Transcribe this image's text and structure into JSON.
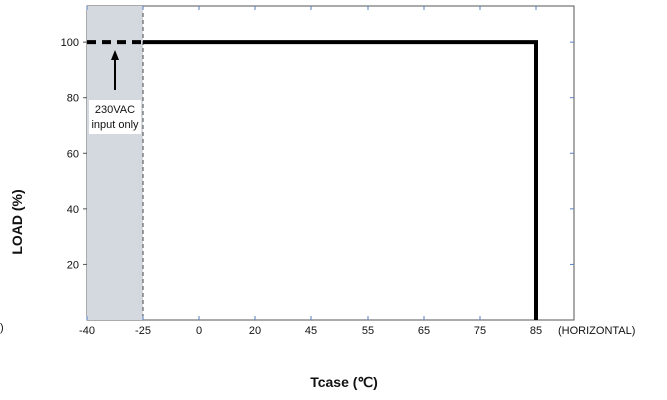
{
  "chart_data": {
    "type": "line",
    "xlabel": "Tcase (℃)",
    "ylabel": "LOAD (%)",
    "x_axis_suffix": "(HORIZONTAL)",
    "x_ticks": [
      "-40",
      "-25",
      "0",
      "20",
      "45",
      "55",
      "65",
      "75",
      "85"
    ],
    "y_ticks": [
      20,
      40,
      60,
      80,
      100
    ],
    "ylim": [
      0,
      113
    ],
    "grid": false,
    "series": [
      {
        "style": "solid",
        "x": [
          "-25",
          "85",
          "85"
        ],
        "y": [
          100,
          100,
          0
        ]
      },
      {
        "style": "dashed",
        "x": [
          "-40",
          "-25"
        ],
        "y": [
          100,
          100
        ]
      }
    ],
    "shaded_region": {
      "x_from": "-40",
      "x_to": "-25",
      "color": "#d3d9df"
    },
    "annotation": {
      "lines": [
        "230VAC",
        "input only"
      ],
      "x": "-32.5"
    },
    "left_edge_fragment": ")"
  }
}
